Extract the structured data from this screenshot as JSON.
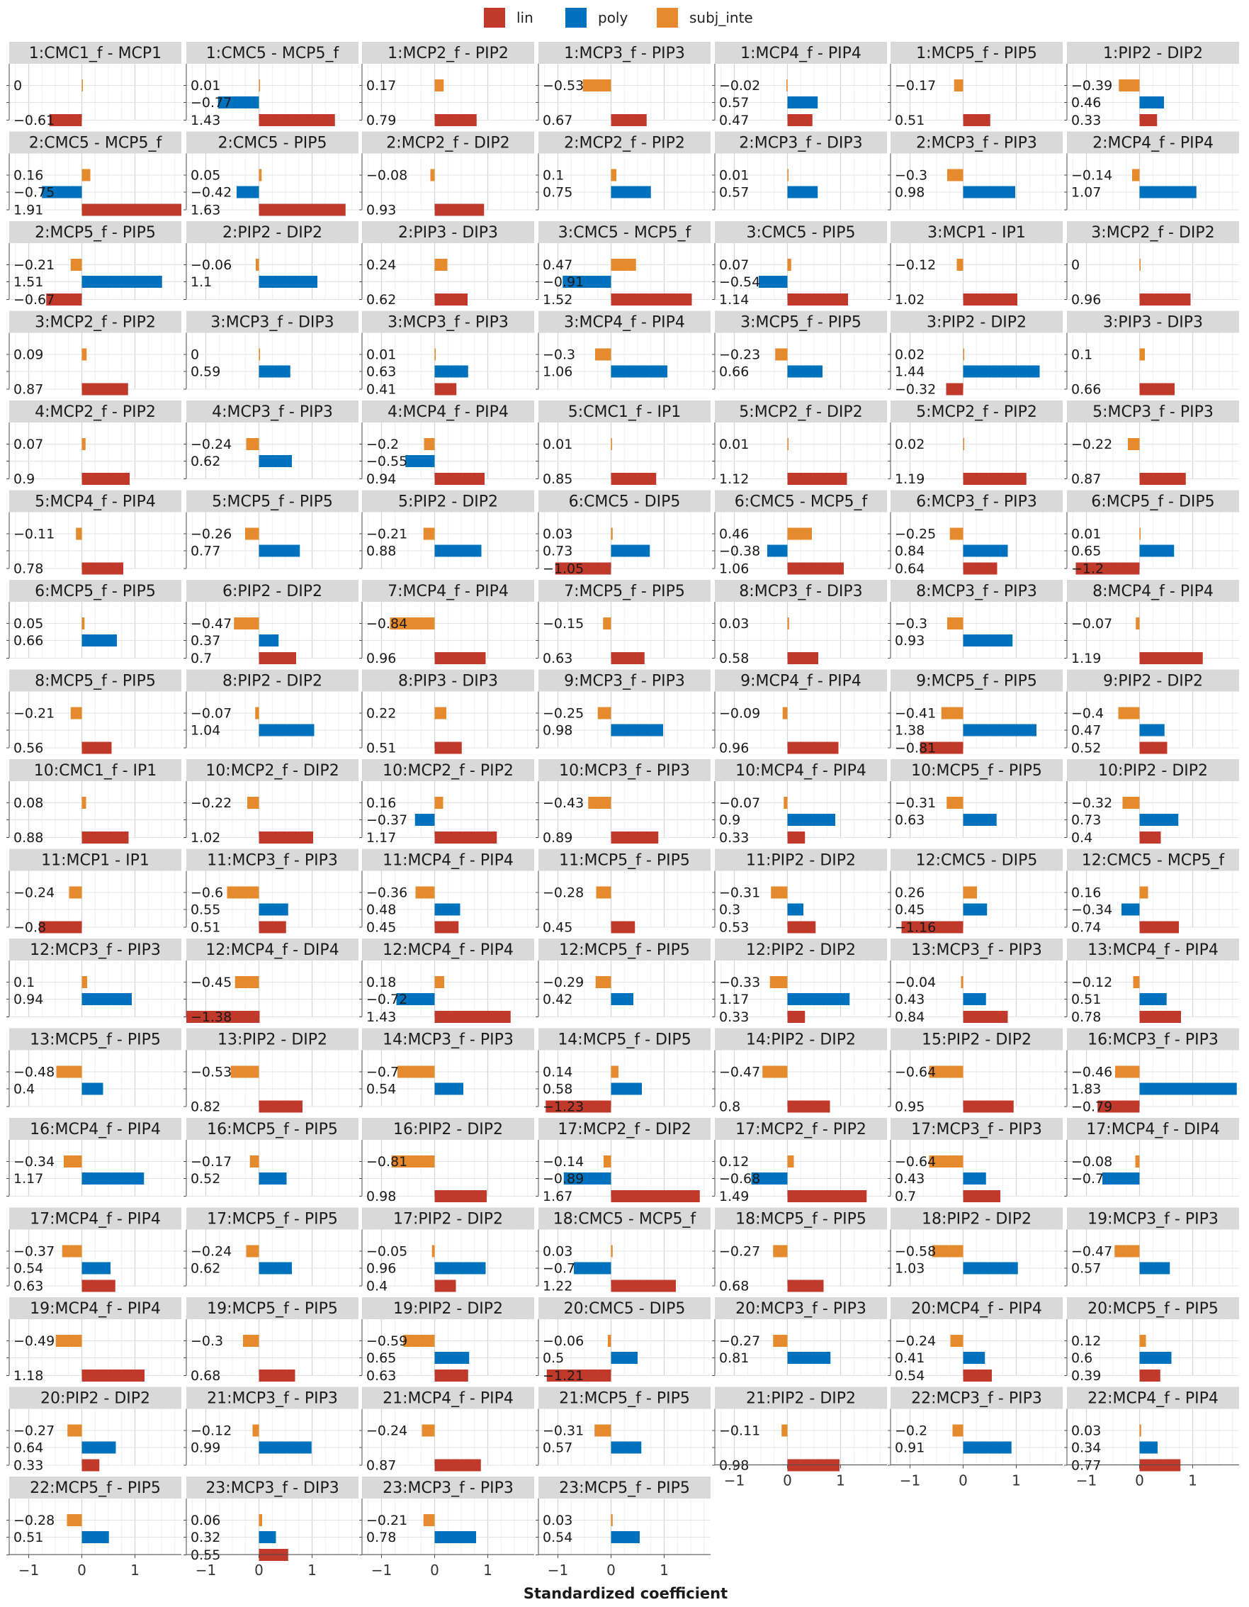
{
  "chart_data": {
    "type": "bar",
    "orientation": "horizontal",
    "xlabel": "Standardized coefficient",
    "xlim": [
      -1.35,
      1.95
    ],
    "x_ticks": [
      -1,
      0,
      1
    ],
    "x_tick_labels": [
      "−1",
      "0",
      "1"
    ],
    "grid": true,
    "legend_position": "top",
    "series": [
      {
        "name": "lin",
        "color": "#c0392b"
      },
      {
        "name": "poly",
        "color": "#0072bd"
      },
      {
        "name": "subj_inte",
        "color": "#e68a2e"
      }
    ],
    "panels": [
      {
        "title": "1:CMC1_f - MCP1",
        "values": [
          -0.61,
          null,
          0
        ]
      },
      {
        "title": "1:CMC5 - MCP5_f",
        "values": [
          1.43,
          -0.77,
          0.01
        ]
      },
      {
        "title": "1:MCP2_f - PIP2",
        "values": [
          0.79,
          null,
          0.17
        ]
      },
      {
        "title": "1:MCP3_f - PIP3",
        "values": [
          0.67,
          null,
          -0.53
        ]
      },
      {
        "title": "1:MCP4_f - PIP4",
        "values": [
          0.47,
          0.57,
          -0.02
        ]
      },
      {
        "title": "1:MCP5_f - PIP5",
        "values": [
          0.51,
          null,
          -0.17
        ]
      },
      {
        "title": "1:PIP2 - DIP2",
        "values": [
          0.33,
          0.46,
          -0.39
        ]
      },
      {
        "title": "2:CMC5 - MCP5_f",
        "values": [
          1.91,
          -0.75,
          0.16
        ]
      },
      {
        "title": "2:CMC5 - PIP5",
        "values": [
          1.63,
          -0.42,
          0.05
        ]
      },
      {
        "title": "2:MCP2_f - DIP2",
        "values": [
          0.93,
          null,
          -0.08
        ]
      },
      {
        "title": "2:MCP2_f - PIP2",
        "values": [
          null,
          0.75,
          0.1
        ]
      },
      {
        "title": "2:MCP3_f - DIP3",
        "values": [
          null,
          0.57,
          0.01
        ]
      },
      {
        "title": "2:MCP3_f - PIP3",
        "values": [
          null,
          0.98,
          -0.3
        ]
      },
      {
        "title": "2:MCP4_f - PIP4",
        "values": [
          null,
          1.07,
          -0.14
        ]
      },
      {
        "title": "2:MCP5_f - PIP5",
        "values": [
          -0.67,
          1.51,
          -0.21
        ]
      },
      {
        "title": "2:PIP2 - DIP2",
        "values": [
          null,
          1.1,
          -0.06
        ]
      },
      {
        "title": "2:PIP3 - DIP3",
        "values": [
          0.62,
          null,
          0.24
        ]
      },
      {
        "title": "3:CMC5 - MCP5_f",
        "values": [
          1.52,
          -0.91,
          0.47
        ]
      },
      {
        "title": "3:CMC5 - PIP5",
        "values": [
          1.14,
          -0.54,
          0.07
        ]
      },
      {
        "title": "3:MCP1 - IP1",
        "values": [
          1.02,
          null,
          -0.12
        ]
      },
      {
        "title": "3:MCP2_f - DIP2",
        "values": [
          0.96,
          null,
          0
        ]
      },
      {
        "title": "3:MCP2_f - PIP2",
        "values": [
          0.87,
          null,
          0.09
        ]
      },
      {
        "title": "3:MCP3_f - DIP3",
        "values": [
          null,
          0.59,
          0
        ]
      },
      {
        "title": "3:MCP3_f - PIP3",
        "values": [
          0.41,
          0.63,
          0.01
        ]
      },
      {
        "title": "3:MCP4_f - PIP4",
        "values": [
          null,
          1.06,
          -0.3
        ]
      },
      {
        "title": "3:MCP5_f - PIP5",
        "values": [
          null,
          0.66,
          -0.23
        ]
      },
      {
        "title": "3:PIP2 - DIP2",
        "values": [
          -0.32,
          1.44,
          0.02
        ]
      },
      {
        "title": "3:PIP3 - DIP3",
        "values": [
          0.66,
          null,
          0.1
        ]
      },
      {
        "title": "4:MCP2_f - PIP2",
        "values": [
          0.9,
          null,
          0.07
        ]
      },
      {
        "title": "4:MCP3_f - PIP3",
        "values": [
          null,
          0.62,
          -0.24
        ]
      },
      {
        "title": "4:MCP4_f - PIP4",
        "values": [
          0.94,
          -0.55,
          -0.2
        ]
      },
      {
        "title": "5:CMC1_f - IP1",
        "values": [
          0.85,
          null,
          0.01
        ]
      },
      {
        "title": "5:MCP2_f - DIP2",
        "values": [
          1.12,
          null,
          0.01
        ]
      },
      {
        "title": "5:MCP2_f - PIP2",
        "values": [
          1.19,
          null,
          0.02
        ]
      },
      {
        "title": "5:MCP3_f - PIP3",
        "values": [
          0.87,
          null,
          -0.22
        ]
      },
      {
        "title": "5:MCP4_f - PIP4",
        "values": [
          0.78,
          null,
          -0.11
        ]
      },
      {
        "title": "5:MCP5_f - PIP5",
        "values": [
          null,
          0.77,
          -0.26
        ]
      },
      {
        "title": "5:PIP2 - DIP2",
        "values": [
          null,
          0.88,
          -0.21
        ]
      },
      {
        "title": "6:CMC5 - DIP5",
        "values": [
          -1.05,
          0.73,
          0.03
        ]
      },
      {
        "title": "6:CMC5 - MCP5_f",
        "values": [
          1.06,
          -0.38,
          0.46
        ]
      },
      {
        "title": "6:MCP3_f - PIP3",
        "values": [
          0.64,
          0.84,
          -0.25
        ]
      },
      {
        "title": "6:MCP5_f - DIP5",
        "values": [
          -1.2,
          0.65,
          0.01
        ]
      },
      {
        "title": "6:MCP5_f - PIP5",
        "values": [
          null,
          0.66,
          0.05
        ]
      },
      {
        "title": "6:PIP2 - DIP2",
        "values": [
          0.7,
          0.37,
          -0.47
        ]
      },
      {
        "title": "7:MCP4_f - PIP4",
        "values": [
          0.96,
          null,
          -0.84
        ]
      },
      {
        "title": "7:MCP5_f - PIP5",
        "values": [
          0.63,
          null,
          -0.15
        ]
      },
      {
        "title": "8:MCP3_f - DIP3",
        "values": [
          0.58,
          null,
          0.03
        ]
      },
      {
        "title": "8:MCP3_f - PIP3",
        "values": [
          null,
          0.93,
          -0.3
        ]
      },
      {
        "title": "8:MCP4_f - PIP4",
        "values": [
          1.19,
          null,
          -0.07
        ]
      },
      {
        "title": "8:MCP5_f - PIP5",
        "values": [
          0.56,
          null,
          -0.21
        ]
      },
      {
        "title": "8:PIP2 - DIP2",
        "values": [
          null,
          1.04,
          -0.07
        ]
      },
      {
        "title": "8:PIP3 - DIP3",
        "values": [
          0.51,
          null,
          0.22
        ]
      },
      {
        "title": "9:MCP3_f - PIP3",
        "values": [
          null,
          0.98,
          -0.25
        ]
      },
      {
        "title": "9:MCP4_f - PIP4",
        "values": [
          0.96,
          null,
          -0.09
        ]
      },
      {
        "title": "9:MCP5_f - PIP5",
        "values": [
          -0.81,
          1.38,
          -0.41
        ]
      },
      {
        "title": "9:PIP2 - DIP2",
        "values": [
          0.52,
          0.47,
          -0.4
        ]
      },
      {
        "title": "10:CMC1_f - IP1",
        "values": [
          0.88,
          null,
          0.08
        ]
      },
      {
        "title": "10:MCP2_f - DIP2",
        "values": [
          1.02,
          null,
          -0.22
        ]
      },
      {
        "title": "10:MCP2_f - PIP2",
        "values": [
          1.17,
          -0.37,
          0.16
        ]
      },
      {
        "title": "10:MCP3_f - PIP3",
        "values": [
          0.89,
          null,
          -0.43
        ]
      },
      {
        "title": "10:MCP4_f - PIP4",
        "values": [
          0.33,
          0.9,
          -0.07
        ]
      },
      {
        "title": "10:MCP5_f - PIP5",
        "values": [
          null,
          0.63,
          -0.31
        ]
      },
      {
        "title": "10:PIP2 - DIP2",
        "values": [
          0.4,
          0.73,
          -0.32
        ]
      },
      {
        "title": "11:MCP1 - IP1",
        "values": [
          -0.8,
          null,
          -0.24
        ]
      },
      {
        "title": "11:MCP3_f - PIP3",
        "values": [
          0.51,
          0.55,
          -0.6
        ]
      },
      {
        "title": "11:MCP4_f - PIP4",
        "values": [
          0.45,
          0.48,
          -0.36
        ]
      },
      {
        "title": "11:MCP5_f - PIP5",
        "values": [
          0.45,
          null,
          -0.28
        ]
      },
      {
        "title": "11:PIP2 - DIP2",
        "values": [
          0.53,
          0.3,
          -0.31
        ]
      },
      {
        "title": "12:CMC5 - DIP5",
        "values": [
          -1.16,
          0.45,
          0.26
        ]
      },
      {
        "title": "12:CMC5 - MCP5_f",
        "values": [
          0.74,
          -0.34,
          0.16
        ]
      },
      {
        "title": "12:MCP3_f - PIP3",
        "values": [
          null,
          0.94,
          0.1
        ]
      },
      {
        "title": "12:MCP4_f - DIP4",
        "values": [
          -1.38,
          null,
          -0.45
        ]
      },
      {
        "title": "12:MCP4_f - PIP4",
        "values": [
          1.43,
          -0.72,
          0.18
        ]
      },
      {
        "title": "12:MCP5_f - PIP5",
        "values": [
          null,
          0.42,
          -0.29
        ]
      },
      {
        "title": "12:PIP2 - DIP2",
        "values": [
          0.33,
          1.17,
          -0.33
        ]
      },
      {
        "title": "13:MCP3_f - PIP3",
        "values": [
          0.84,
          0.43,
          -0.04
        ]
      },
      {
        "title": "13:MCP4_f - PIP4",
        "values": [
          0.78,
          0.51,
          -0.12
        ]
      },
      {
        "title": "13:MCP5_f - PIP5",
        "values": [
          null,
          0.4,
          -0.48
        ]
      },
      {
        "title": "13:PIP2 - DIP2",
        "values": [
          0.82,
          null,
          -0.53
        ]
      },
      {
        "title": "14:MCP3_f - PIP3",
        "values": [
          null,
          0.54,
          -0.7
        ]
      },
      {
        "title": "14:MCP5_f - DIP5",
        "values": [
          -1.23,
          0.58,
          0.14
        ]
      },
      {
        "title": "14:PIP2 - DIP2",
        "values": [
          0.8,
          null,
          -0.47
        ]
      },
      {
        "title": "15:PIP2 - DIP2",
        "values": [
          0.95,
          null,
          -0.64
        ]
      },
      {
        "title": "16:MCP3_f - PIP3",
        "values": [
          -0.79,
          1.83,
          -0.46
        ]
      },
      {
        "title": "16:MCP4_f - PIP4",
        "values": [
          null,
          1.17,
          -0.34
        ]
      },
      {
        "title": "16:MCP5_f - PIP5",
        "values": [
          null,
          0.52,
          -0.17
        ]
      },
      {
        "title": "16:PIP2 - DIP2",
        "values": [
          0.98,
          null,
          -0.81
        ]
      },
      {
        "title": "17:MCP2_f - DIP2",
        "values": [
          1.67,
          -0.89,
          -0.14
        ]
      },
      {
        "title": "17:MCP2_f - PIP2",
        "values": [
          1.49,
          -0.68,
          0.12
        ]
      },
      {
        "title": "17:MCP3_f - PIP3",
        "values": [
          0.7,
          0.43,
          -0.64
        ]
      },
      {
        "title": "17:MCP4_f - DIP4",
        "values": [
          null,
          -0.7,
          -0.08
        ]
      },
      {
        "title": "17:MCP4_f - PIP4",
        "values": [
          0.63,
          0.54,
          -0.37
        ]
      },
      {
        "title": "17:MCP5_f - PIP5",
        "values": [
          null,
          0.62,
          -0.24
        ]
      },
      {
        "title": "17:PIP2 - DIP2",
        "values": [
          0.4,
          0.96,
          -0.05
        ]
      },
      {
        "title": "18:CMC5 - MCP5_f",
        "values": [
          1.22,
          -0.7,
          0.03
        ]
      },
      {
        "title": "18:MCP5_f - PIP5",
        "values": [
          0.68,
          null,
          -0.27
        ]
      },
      {
        "title": "18:PIP2 - DIP2",
        "values": [
          null,
          1.03,
          -0.58
        ]
      },
      {
        "title": "19:MCP3_f - PIP3",
        "values": [
          null,
          0.57,
          -0.47
        ]
      },
      {
        "title": "19:MCP4_f - PIP4",
        "values": [
          1.18,
          null,
          -0.49
        ]
      },
      {
        "title": "19:MCP5_f - PIP5",
        "values": [
          0.68,
          null,
          -0.3
        ]
      },
      {
        "title": "19:PIP2 - DIP2",
        "values": [
          0.63,
          0.65,
          -0.59
        ]
      },
      {
        "title": "20:CMC5 - DIP5",
        "values": [
          -1.21,
          0.5,
          -0.06
        ]
      },
      {
        "title": "20:MCP3_f - PIP3",
        "values": [
          null,
          0.81,
          -0.27
        ]
      },
      {
        "title": "20:MCP4_f - PIP4",
        "values": [
          0.54,
          0.41,
          -0.24
        ]
      },
      {
        "title": "20:MCP5_f - PIP5",
        "values": [
          0.39,
          0.6,
          0.12
        ]
      },
      {
        "title": "20:PIP2 - DIP2",
        "values": [
          0.33,
          0.64,
          -0.27
        ]
      },
      {
        "title": "21:MCP3_f - PIP3",
        "values": [
          null,
          0.99,
          -0.12
        ]
      },
      {
        "title": "21:MCP4_f - PIP4",
        "values": [
          0.87,
          null,
          -0.24
        ]
      },
      {
        "title": "21:MCP5_f - PIP5",
        "values": [
          null,
          0.57,
          -0.31
        ]
      },
      {
        "title": "21:PIP2 - DIP2",
        "values": [
          0.98,
          null,
          -0.11
        ]
      },
      {
        "title": "22:MCP3_f - PIP3",
        "values": [
          null,
          0.91,
          -0.2
        ]
      },
      {
        "title": "22:MCP4_f - PIP4",
        "values": [
          0.77,
          0.34,
          0.03
        ]
      },
      {
        "title": "22:MCP5_f - PIP5",
        "values": [
          null,
          0.51,
          -0.28
        ]
      },
      {
        "title": "23:MCP3_f - DIP3",
        "values": [
          0.55,
          0.32,
          0.06
        ]
      },
      {
        "title": "23:MCP3_f - PIP3",
        "values": [
          null,
          0.78,
          -0.21
        ]
      },
      {
        "title": "23:MCP5_f - PIP5",
        "values": [
          null,
          0.54,
          0.03
        ]
      }
    ]
  }
}
